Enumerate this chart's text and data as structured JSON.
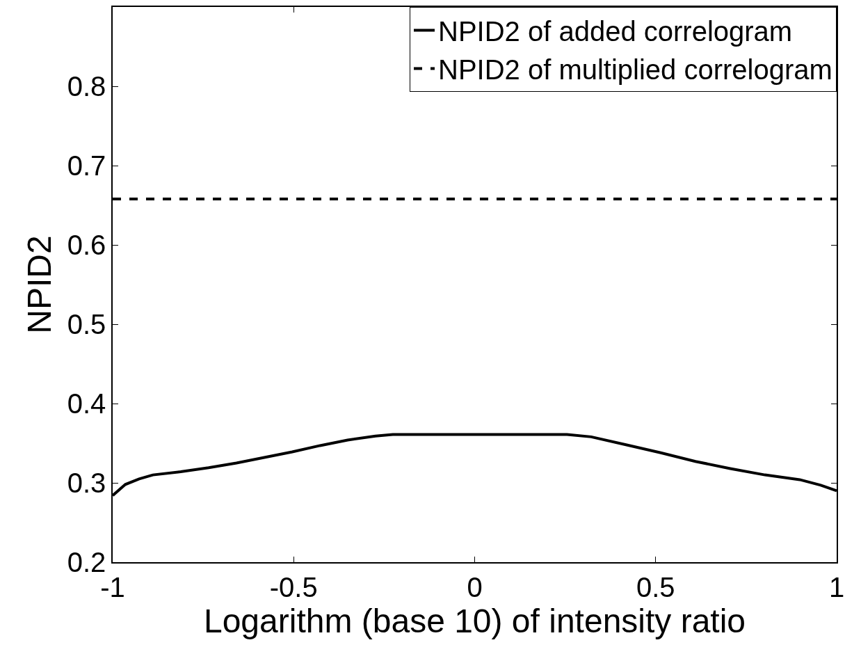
{
  "chart_data": {
    "type": "line",
    "xlabel": "Logarithm (base 10) of intensity ratio",
    "ylabel": "NPID2",
    "xlim": [
      -1,
      1
    ],
    "xticks": [
      -1,
      -0.5,
      0,
      0.5,
      1
    ],
    "ylim": [
      0.2,
      0.9
    ],
    "yticks": [
      0.2,
      0.3,
      0.4,
      0.5,
      0.6,
      0.7,
      0.8
    ],
    "grid": false,
    "legend": "top right",
    "marker": "none",
    "series": [
      {
        "name": "NPID2 of added correlogram",
        "color": "#000000",
        "line_style": "solid",
        "x": [
          -1,
          -0.965,
          -0.927,
          -0.889,
          -0.812,
          -0.735,
          -0.658,
          -0.581,
          -0.504,
          -0.427,
          -0.351,
          -0.274,
          -0.226,
          0.255,
          0.322,
          0.418,
          0.514,
          0.61,
          0.706,
          0.802,
          0.898,
          0.956,
          1
        ],
        "values": [
          0.284,
          0.298,
          0.305,
          0.31,
          0.314,
          0.319,
          0.325,
          0.332,
          0.339,
          0.347,
          0.354,
          0.359,
          0.361,
          0.361,
          0.358,
          0.348,
          0.338,
          0.327,
          0.318,
          0.31,
          0.304,
          0.297,
          0.29
        ]
      },
      {
        "name": "NPID2 of multiplied correlogram",
        "color": "#000000",
        "line_style": "dashed",
        "x": [
          -1,
          1
        ],
        "values": [
          0.658,
          0.658
        ]
      }
    ]
  }
}
